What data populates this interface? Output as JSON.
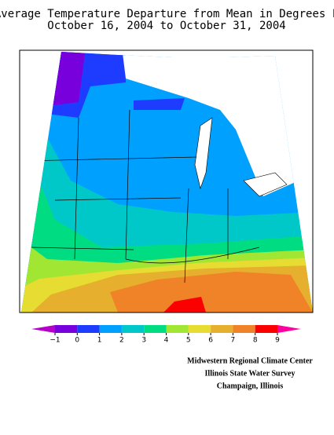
{
  "title": [
    "Average Temperature Departure from Mean in Degrees F",
    "October 16, 2004 to October 31, 2004"
  ],
  "colorbar": {
    "ticks": [
      {
        "value": -1,
        "label": "−1"
      },
      0,
      1,
      2,
      3,
      4,
      5,
      6,
      7,
      8,
      9
    ],
    "colors": [
      "#b400c8",
      "#7800dc",
      "#1e3cff",
      "#00a0ff",
      "#00c8c8",
      "#00dc82",
      "#a0e632",
      "#e6dc32",
      "#e6af2d",
      "#f08228",
      "#fa0000",
      "#ff00a0"
    ]
  },
  "credits": [
    "Midwestern Regional Climate Center",
    "Illinois State Water Survey",
    "Champaign, Illinois"
  ]
}
